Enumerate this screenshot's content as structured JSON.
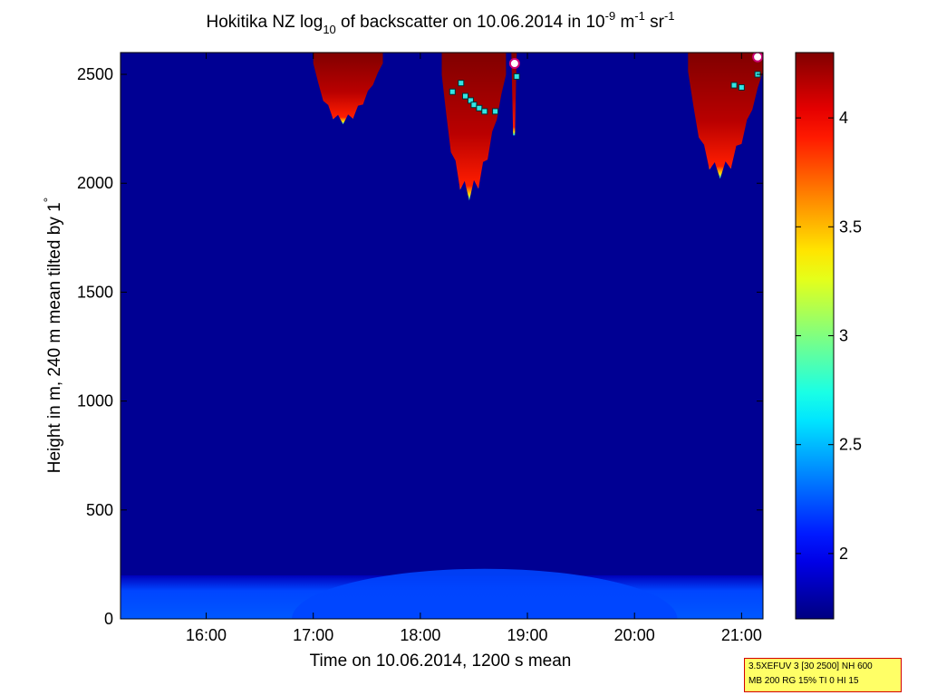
{
  "chart_data": {
    "type": "heatmap",
    "title": {
      "t1": "Hokitika NZ log",
      "s1": "10",
      "t2": " of backscatter on 10.06.2014 in 10",
      "s2": "-9",
      "t3": " m",
      "s3": "-1",
      "t4": " sr",
      "s4": "-1"
    },
    "xlabel": "Time on 10.06.2014, 1200 s mean",
    "ylabel_pre": "Height in m, 240 m mean tilted by 1",
    "ylabel_degree": "°",
    "x_ticks": [
      "16:00",
      "17:00",
      "18:00",
      "19:00",
      "20:00",
      "21:00"
    ],
    "x_tick_hours": [
      16,
      17,
      18,
      19,
      20,
      21
    ],
    "xlim_hours": [
      15.2,
      21.2
    ],
    "y_ticks": [
      0,
      500,
      1000,
      1500,
      2000,
      2500
    ],
    "ylim": [
      0,
      2600
    ],
    "colorbar_ticks": [
      "2",
      "2.5",
      "3",
      "3.5",
      "4"
    ],
    "colorbar_values": [
      2,
      2.5,
      3,
      3.5,
      4
    ],
    "colorbar_range": [
      1.7,
      4.3
    ],
    "colormap": "jet",
    "background_value": 1.75,
    "surface_layer": {
      "top_height_m": 200,
      "peak_value": 2.45,
      "peak_time_hours": 18.6
    },
    "cloud_features": [
      {
        "time_start_hours": 17.0,
        "time_end_hours": 17.65,
        "base_height_m": 2270,
        "top_height_m": 2600
      },
      {
        "time_start_hours": 18.2,
        "time_end_hours": 18.8,
        "base_height_m": 1920,
        "top_height_m": 2600
      },
      {
        "time_start_hours": 18.85,
        "time_end_hours": 18.9,
        "base_height_m": 2220,
        "top_height_m": 2600
      },
      {
        "time_start_hours": 20.5,
        "time_end_hours": 21.2,
        "base_height_m": 2020,
        "top_height_m": 2600
      }
    ],
    "cloud_base_markers": [
      {
        "time_hours": 18.3,
        "height_m": 2420
      },
      {
        "time_hours": 18.38,
        "height_m": 2460
      },
      {
        "time_hours": 18.42,
        "height_m": 2400
      },
      {
        "time_hours": 18.47,
        "height_m": 2380
      },
      {
        "time_hours": 18.5,
        "height_m": 2360
      },
      {
        "time_hours": 18.55,
        "height_m": 2345
      },
      {
        "time_hours": 18.6,
        "height_m": 2330
      },
      {
        "time_hours": 18.7,
        "height_m": 2330
      },
      {
        "time_hours": 18.9,
        "height_m": 2490
      },
      {
        "time_hours": 20.93,
        "height_m": 2450
      },
      {
        "time_hours": 21.0,
        "height_m": 2440
      },
      {
        "time_hours": 21.15,
        "height_m": 2500
      }
    ],
    "circle_markers": [
      {
        "time_hours": 18.88,
        "height_m": 2550
      },
      {
        "time_hours": 21.15,
        "height_m": 2580
      }
    ],
    "info_lines": [
      "3.5XEFUV 3 [30 2500] NH 600",
      "MB 200 RG 15% TI 0 HI 15"
    ]
  }
}
